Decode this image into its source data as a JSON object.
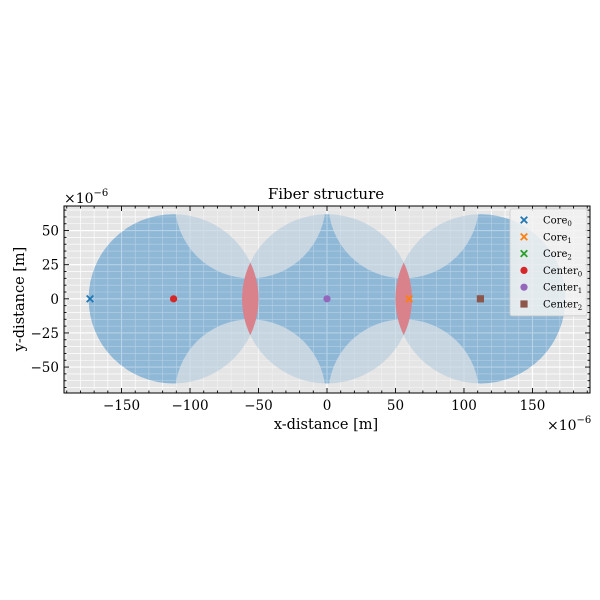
{
  "chart_data": {
    "type": "scatter",
    "title": "Fiber structure",
    "xlabel": "x-distance [m]",
    "ylabel": "y-distance [m]",
    "xlim": [
      -192,
      192
    ],
    "ylim": [
      -69,
      68
    ],
    "scale_label": {
      "base": "×10",
      "exponent": "−6"
    },
    "grid": true,
    "legend_position": "top-right",
    "x_ticks": [
      -150,
      -100,
      -50,
      0,
      50,
      100,
      150
    ],
    "x_tick_labels": [
      "−150",
      "−100",
      "−50",
      "0",
      "50",
      "100",
      "150"
    ],
    "y_ticks": [
      -50,
      -25,
      0,
      25,
      50
    ],
    "y_tick_labels": [
      "−50",
      "−25",
      "0",
      "25",
      "50"
    ],
    "regions": [
      {
        "name": "cladding",
        "color": "#8fb8d8",
        "circles": [
          {
            "cx": -112,
            "cy": 0,
            "r": 62
          },
          {
            "cx": 0,
            "cy": 0,
            "r": 62
          },
          {
            "cx": 112,
            "cy": 0,
            "r": 62
          }
        ]
      },
      {
        "name": "overlap",
        "color": "#d9828b",
        "pairs": [
          [
            0,
            1
          ],
          [
            1,
            2
          ]
        ]
      },
      {
        "name": "gap",
        "color": "#5a9e74",
        "gap_circle_r": 55,
        "gaps": [
          {
            "cx": -56,
            "cy": 70
          },
          {
            "cx": 56,
            "cy": 70
          },
          {
            "cx": -56,
            "cy": -70
          },
          {
            "cx": 56,
            "cy": -70
          }
        ]
      }
    ],
    "series": [
      {
        "name": "Core",
        "sub": "0",
        "marker": "x",
        "color": "#1f77b4",
        "points": [
          {
            "x": -173,
            "y": 0
          }
        ]
      },
      {
        "name": "Core",
        "sub": "1",
        "marker": "x",
        "color": "#ff7f0e",
        "points": [
          {
            "x": 60,
            "y": 0
          }
        ]
      },
      {
        "name": "Core",
        "sub": "2",
        "marker": "x",
        "color": "#2ca02c",
        "points": []
      },
      {
        "name": "Center",
        "sub": "0",
        "marker": "o",
        "color": "#d62728",
        "points": [
          {
            "x": -112,
            "y": 0
          }
        ]
      },
      {
        "name": "Center",
        "sub": "1",
        "marker": "o",
        "color": "#9467bd",
        "points": [
          {
            "x": 0,
            "y": 0
          }
        ]
      },
      {
        "name": "Center",
        "sub": "2",
        "marker": "s",
        "color": "#8c564b",
        "points": [
          {
            "x": 112,
            "y": 0
          }
        ]
      }
    ]
  }
}
